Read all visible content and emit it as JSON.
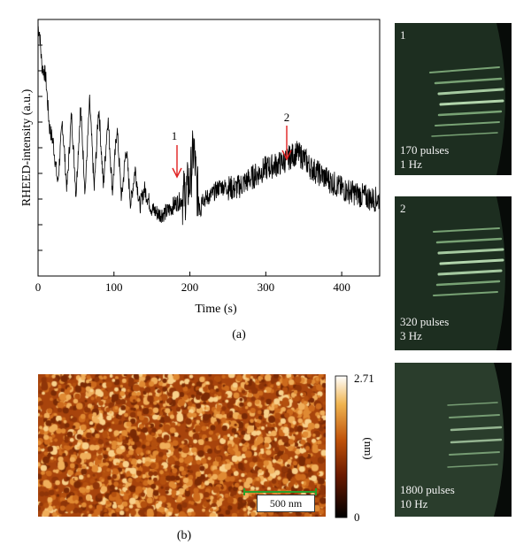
{
  "chart_data": {
    "type": "line",
    "xlabel": "Time (s)",
    "ylabel": "RHEED-intensity (a.u.)",
    "xlim": [
      0,
      450
    ],
    "xticks": [
      0,
      100,
      200,
      300,
      400
    ],
    "yticks_labeled": false,
    "grid": false,
    "series": [
      {
        "x": [
          0,
          2,
          5,
          10,
          15,
          20,
          26,
          32,
          38,
          44,
          50,
          56,
          62,
          68,
          74,
          80,
          86,
          92,
          98,
          104,
          110,
          116,
          122,
          128,
          134,
          140,
          150,
          160,
          170,
          180,
          190,
          200,
          205,
          210,
          220,
          230,
          240,
          260,
          280,
          300,
          320,
          340,
          350,
          360,
          380,
          400,
          420,
          440,
          450
        ],
        "y": [
          0.97,
          0.95,
          0.82,
          0.78,
          0.58,
          0.52,
          0.36,
          0.6,
          0.34,
          0.63,
          0.32,
          0.66,
          0.33,
          0.68,
          0.34,
          0.66,
          0.35,
          0.62,
          0.33,
          0.58,
          0.3,
          0.5,
          0.28,
          0.42,
          0.27,
          0.34,
          0.26,
          0.24,
          0.25,
          0.28,
          0.3,
          0.36,
          0.5,
          0.32,
          0.3,
          0.32,
          0.35,
          0.34,
          0.38,
          0.42,
          0.44,
          0.48,
          0.46,
          0.42,
          0.38,
          0.34,
          0.32,
          0.3,
          0.3
        ]
      }
    ],
    "annotations": [
      {
        "label": "1",
        "x": 183,
        "type": "arrow-down"
      },
      {
        "label": "2",
        "x": 328,
        "type": "arrow-down"
      }
    ]
  },
  "caption_a": "(a)",
  "caption_b": "(b)",
  "afm": {
    "scalebar_label": "500 nm",
    "colorbar_max": "2.71",
    "colorbar_min": "0",
    "colorbar_unit": "(nm)"
  },
  "rheed_panels": [
    {
      "number": "1",
      "pulses": "170 pulses",
      "freq": "1 Hz"
    },
    {
      "number": "2",
      "pulses": "320 pulses",
      "freq": "3 Hz"
    },
    {
      "number": "",
      "pulses": "1800 pulses",
      "freq": "10 Hz"
    }
  ],
  "colors": {
    "trace": "#000000",
    "arrow": "#e02020",
    "scalebar": "#2aa02a"
  }
}
